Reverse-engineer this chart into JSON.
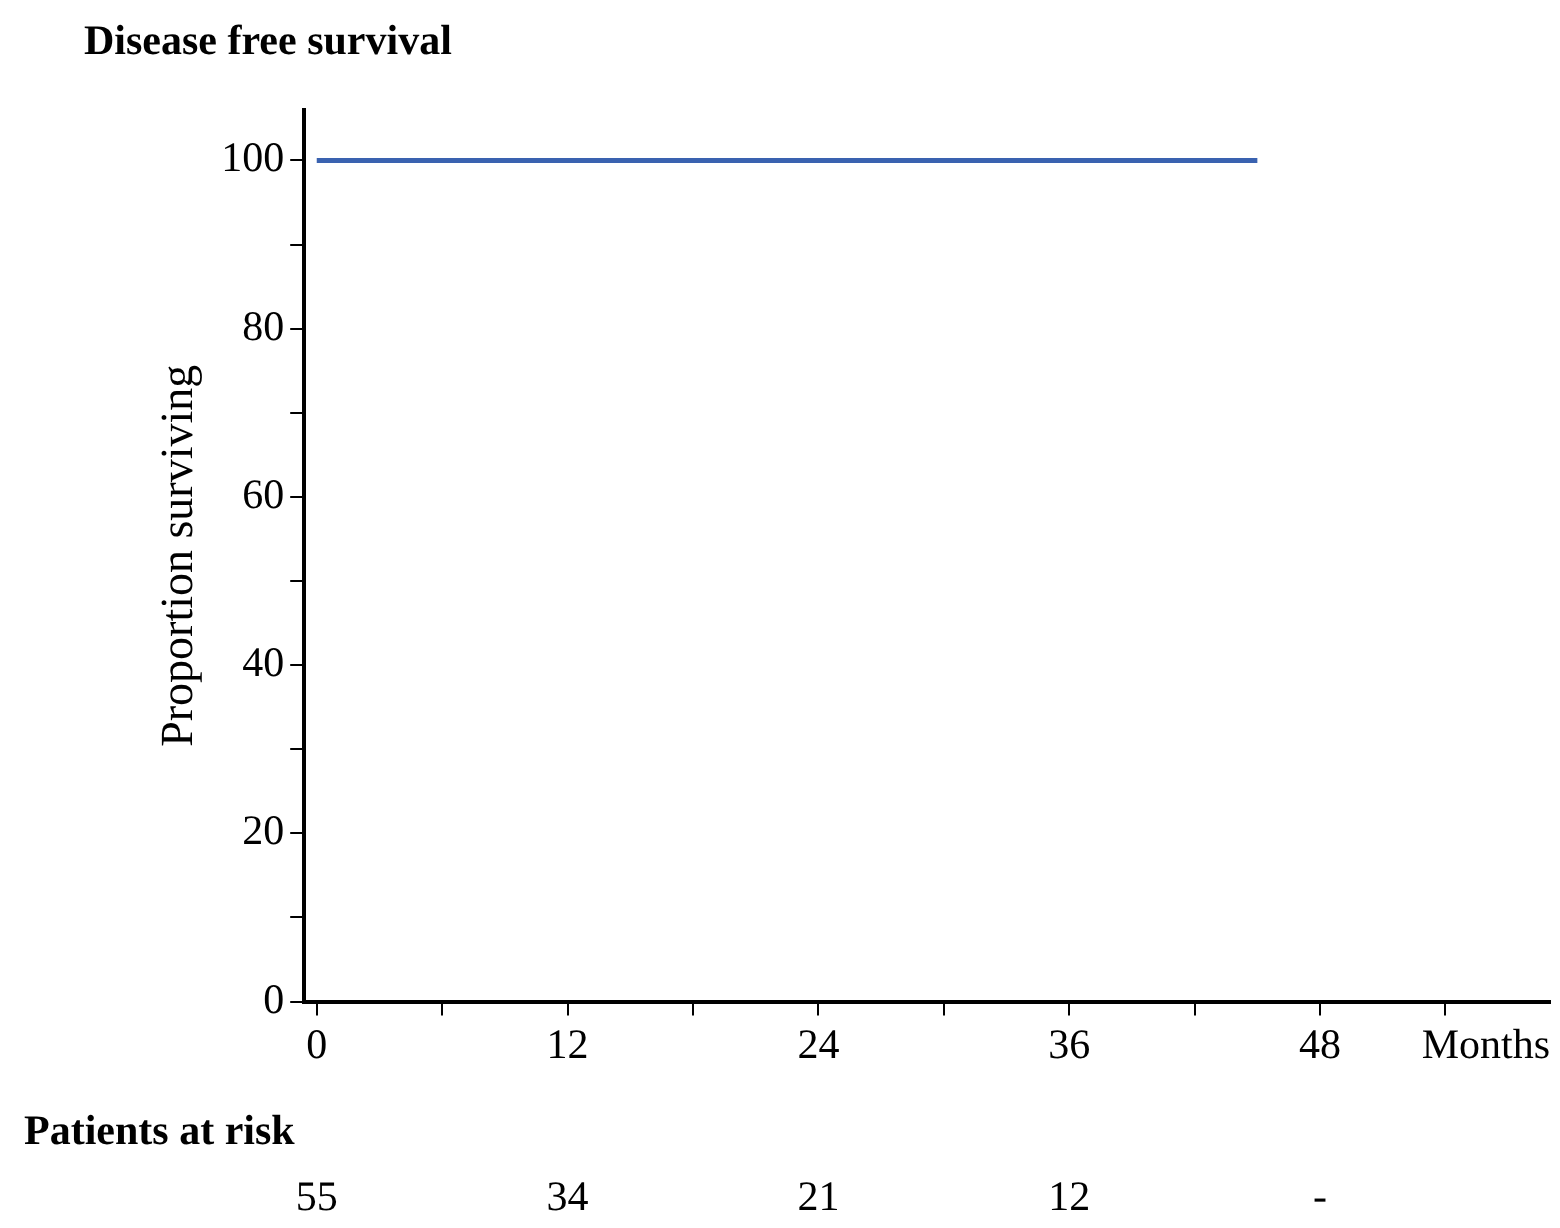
{
  "chart_data": {
    "type": "line",
    "title": "Disease free survival",
    "ylabel": "Proportion surviving",
    "xlabel": "Months",
    "series": [
      {
        "color": "#3a62b0",
        "x": [
          0,
          45
        ],
        "values": [
          100,
          100
        ]
      }
    ],
    "xlim": [
      -0.6,
      59
    ],
    "xticks": [
      0,
      {
        "value": 6,
        "label": null
      },
      12,
      {
        "value": 18,
        "label": null
      },
      24,
      {
        "value": 30,
        "label": null
      },
      36,
      {
        "value": 42,
        "label": null
      },
      48,
      {
        "value": 54,
        "label": null
      }
    ],
    "ylim": [
      0,
      106
    ],
    "yticks": [
      0,
      {
        "value": 10,
        "label": null
      },
      20,
      {
        "value": 30,
        "label": null
      },
      40,
      {
        "value": 50,
        "label": null
      },
      60,
      {
        "value": 70,
        "label": null
      },
      80,
      {
        "value": 90,
        "label": null
      },
      100
    ],
    "marker": "none",
    "line_style": "solid",
    "grid": false,
    "legend": false,
    "annotations": [
      "Patients at risk",
      "55",
      "34",
      "21",
      "12",
      "-"
    ]
  }
}
